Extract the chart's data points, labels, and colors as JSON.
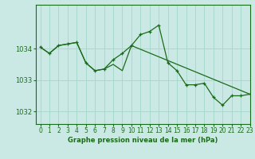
{
  "title": "Graphe pression niveau de la mer (hPa)",
  "background_color": "#cbe9e4",
  "grid_color": "#a8d8cc",
  "line_color": "#1a6b1a",
  "marker_color": "#1a6b1a",
  "xlim": [
    -0.5,
    23
  ],
  "ylim": [
    1031.6,
    1035.4
  ],
  "yticks": [
    1032,
    1033,
    1034
  ],
  "xticks": [
    0,
    1,
    2,
    3,
    4,
    5,
    6,
    7,
    8,
    9,
    10,
    11,
    12,
    13,
    14,
    15,
    16,
    17,
    18,
    19,
    20,
    21,
    22,
    23
  ],
  "series1_x": [
    0,
    1,
    2,
    3,
    4,
    5,
    6,
    7,
    8,
    9,
    10,
    11,
    12,
    13,
    14,
    15,
    16,
    17,
    18,
    19,
    20,
    21,
    22,
    23
  ],
  "series1_y": [
    1034.05,
    1033.85,
    1034.1,
    1034.15,
    1034.2,
    1033.55,
    1033.3,
    1033.35,
    1033.65,
    1033.85,
    1034.1,
    1034.45,
    1034.55,
    1034.75,
    1033.55,
    1033.3,
    1032.85,
    1032.85,
    1032.9,
    1032.45,
    1032.2,
    1032.5,
    1032.5,
    1032.55
  ],
  "series2_x": [
    0,
    1,
    2,
    3,
    4,
    5,
    6,
    7,
    8,
    9,
    10,
    23
  ],
  "series2_y": [
    1034.05,
    1033.85,
    1034.1,
    1034.15,
    1034.2,
    1033.55,
    1033.3,
    1033.35,
    1033.5,
    1033.3,
    1034.1,
    1032.55
  ],
  "title_fontsize": 6.0,
  "tick_fontsize": 5.5
}
